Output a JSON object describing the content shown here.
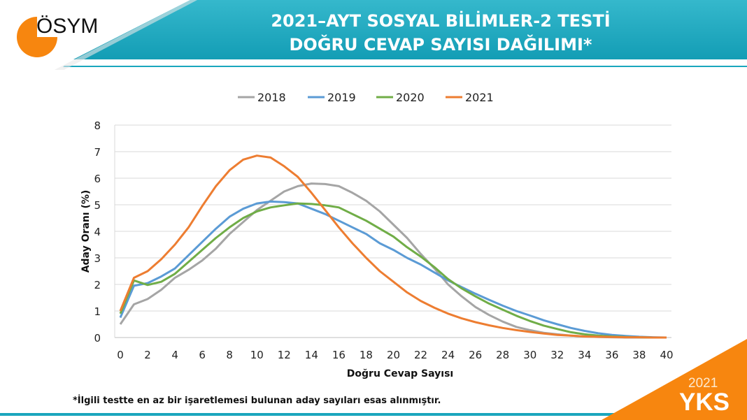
{
  "header": {
    "logo_text": "ÖSYM",
    "title_line1": "2021–AYT SOSYAL BİLİMLER-2 TESTİ",
    "title_line2": "DOĞRU CEVAP SAYISI DAĞILIMI*"
  },
  "footnote": "*İlgili testte en az bir işaretlemesi bulunan aday sayıları esas alınmıştır.",
  "badge": {
    "year": "2021",
    "label": "YKS"
  },
  "colors": {
    "teal": "#1aa6bd",
    "orange": "#f7860f"
  },
  "chart_data": {
    "type": "line",
    "title": "",
    "xlabel": "Doğru Cevap Sayısı",
    "ylabel": "Aday Oranı (%)",
    "xlim": [
      0,
      40
    ],
    "ylim": [
      0,
      8
    ],
    "xticks": [
      "0",
      "2",
      "4",
      "6",
      "8",
      "10",
      "12",
      "14",
      "16",
      "18",
      "20",
      "22",
      "24",
      "26",
      "28",
      "30",
      "32",
      "34",
      "36",
      "38",
      "40"
    ],
    "yticks": [
      "0",
      "1",
      "2",
      "3",
      "4",
      "5",
      "6",
      "7",
      "8"
    ],
    "grid": true,
    "legend_position": "top",
    "x": [
      0,
      1,
      2,
      3,
      4,
      5,
      6,
      7,
      8,
      9,
      10,
      11,
      12,
      13,
      14,
      15,
      16,
      17,
      18,
      19,
      20,
      21,
      22,
      23,
      24,
      25,
      26,
      27,
      28,
      29,
      30,
      31,
      32,
      33,
      34,
      35,
      36,
      37,
      38,
      39,
      40
    ],
    "series": [
      {
        "name": "2018",
        "color": "#a5a5a5",
        "values": [
          0.5,
          1.25,
          1.45,
          1.8,
          2.25,
          2.55,
          2.9,
          3.35,
          3.9,
          4.35,
          4.8,
          5.15,
          5.5,
          5.7,
          5.8,
          5.78,
          5.7,
          5.45,
          5.15,
          4.75,
          4.25,
          3.75,
          3.15,
          2.6,
          2.0,
          1.55,
          1.15,
          0.85,
          0.6,
          0.4,
          0.28,
          0.18,
          0.12,
          0.07,
          0.04,
          0.02,
          0.01,
          0,
          0,
          0,
          0
        ]
      },
      {
        "name": "2019",
        "color": "#5b9bd5",
        "values": [
          0.75,
          1.95,
          2.05,
          2.3,
          2.6,
          3.1,
          3.6,
          4.1,
          4.55,
          4.85,
          5.05,
          5.12,
          5.1,
          5.05,
          4.85,
          4.65,
          4.4,
          4.15,
          3.9,
          3.55,
          3.3,
          3.0,
          2.75,
          2.45,
          2.15,
          1.9,
          1.65,
          1.42,
          1.2,
          1.0,
          0.83,
          0.65,
          0.5,
          0.36,
          0.25,
          0.16,
          0.1,
          0.06,
          0.03,
          0.01,
          0
        ]
      },
      {
        "name": "2020",
        "color": "#70ad47",
        "values": [
          0.9,
          2.15,
          1.98,
          2.1,
          2.4,
          2.85,
          3.3,
          3.75,
          4.15,
          4.5,
          4.75,
          4.9,
          4.98,
          5.05,
          5.03,
          4.98,
          4.9,
          4.65,
          4.4,
          4.1,
          3.8,
          3.4,
          3.05,
          2.65,
          2.2,
          1.85,
          1.55,
          1.28,
          1.05,
          0.82,
          0.62,
          0.45,
          0.32,
          0.2,
          0.12,
          0.07,
          0.04,
          0.02,
          0.01,
          0,
          0
        ]
      },
      {
        "name": "2021",
        "color": "#ed7d31",
        "values": [
          1.0,
          2.25,
          2.5,
          2.95,
          3.5,
          4.15,
          4.95,
          5.7,
          6.3,
          6.7,
          6.85,
          6.78,
          6.45,
          6.05,
          5.45,
          4.8,
          4.15,
          3.55,
          3.0,
          2.5,
          2.1,
          1.7,
          1.38,
          1.12,
          0.9,
          0.72,
          0.58,
          0.46,
          0.36,
          0.28,
          0.21,
          0.15,
          0.1,
          0.07,
          0.04,
          0.03,
          0.02,
          0.01,
          0.01,
          0,
          0
        ]
      }
    ]
  }
}
